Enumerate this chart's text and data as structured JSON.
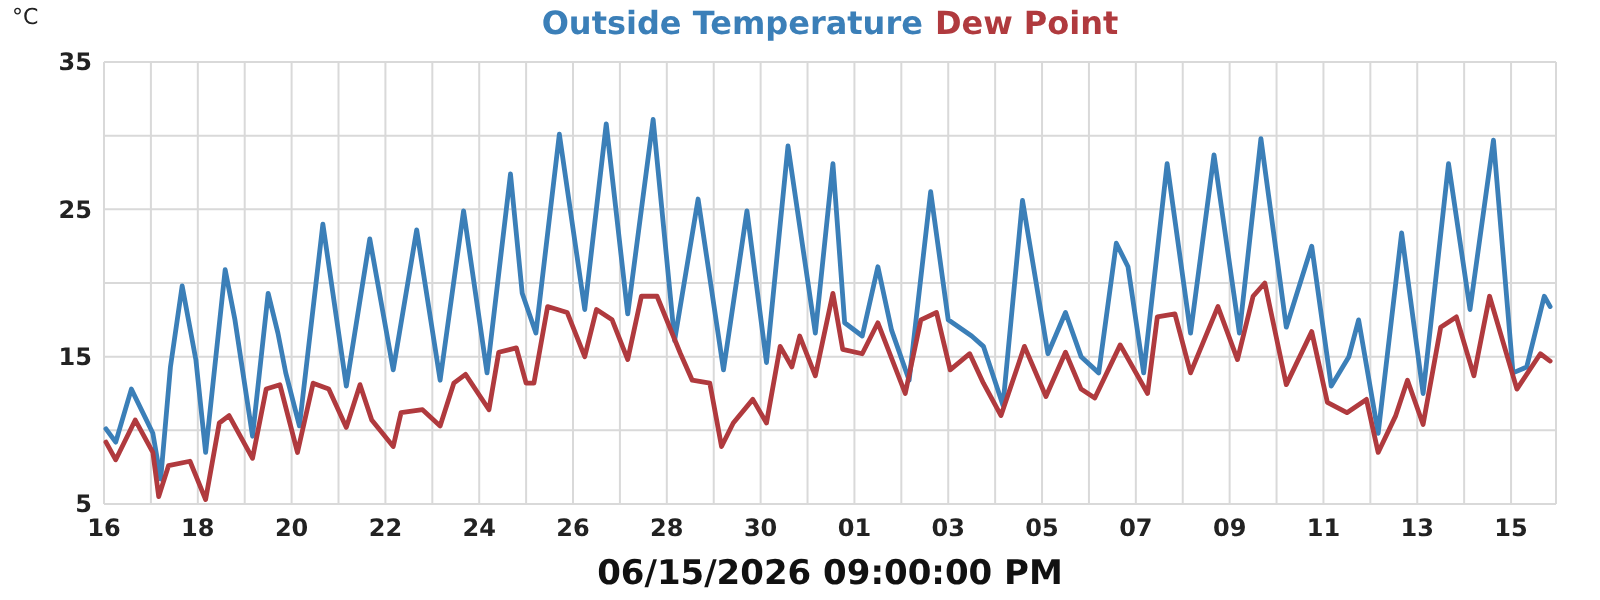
{
  "chart_data": {
    "type": "line",
    "ylabel": "°C",
    "xlabel": "06/15/2026 09:00:00 PM",
    "legend": "top",
    "grid": true,
    "line_style": "solid",
    "marker": "none",
    "xlim": [
      "2026-05-16T00:00",
      "2026-06-15T23:00"
    ],
    "xticks": [
      {
        "value": "2026-05-16",
        "label": "16"
      },
      {
        "value": "2026-05-17",
        "label": null
      },
      {
        "value": "2026-05-18",
        "label": "18"
      },
      {
        "value": "2026-05-19",
        "label": null
      },
      {
        "value": "2026-05-20",
        "label": "20"
      },
      {
        "value": "2026-05-21",
        "label": null
      },
      {
        "value": "2026-05-22",
        "label": "22"
      },
      {
        "value": "2026-05-23",
        "label": null
      },
      {
        "value": "2026-05-24",
        "label": "24"
      },
      {
        "value": "2026-05-25",
        "label": null
      },
      {
        "value": "2026-05-26",
        "label": "26"
      },
      {
        "value": "2026-05-27",
        "label": null
      },
      {
        "value": "2026-05-28",
        "label": "28"
      },
      {
        "value": "2026-05-29",
        "label": null
      },
      {
        "value": "2026-05-30",
        "label": "30"
      },
      {
        "value": "2026-05-31",
        "label": null
      },
      {
        "value": "2026-06-01",
        "label": "01"
      },
      {
        "value": "2026-06-02",
        "label": null
      },
      {
        "value": "2026-06-03",
        "label": "03"
      },
      {
        "value": "2026-06-04",
        "label": null
      },
      {
        "value": "2026-06-05",
        "label": "05"
      },
      {
        "value": "2026-06-06",
        "label": null
      },
      {
        "value": "2026-06-07",
        "label": "07"
      },
      {
        "value": "2026-06-08",
        "label": null
      },
      {
        "value": "2026-06-09",
        "label": "09"
      },
      {
        "value": "2026-06-10",
        "label": null
      },
      {
        "value": "2026-06-11",
        "label": "11"
      },
      {
        "value": "2026-06-12",
        "label": null
      },
      {
        "value": "2026-06-13",
        "label": "13"
      },
      {
        "value": "2026-06-14",
        "label": null
      },
      {
        "value": "2026-06-15",
        "label": "15"
      }
    ],
    "ylim": [
      5,
      35
    ],
    "yticks": [
      5,
      {
        "value": 10,
        "label": null
      },
      15,
      {
        "value": 20,
        "label": null
      },
      25,
      {
        "value": 30,
        "label": null
      },
      35
    ],
    "series": [
      {
        "name": "Outside Temperature",
        "color": "#3b7fb8",
        "x": [
          "2026-05-16T01:00",
          "2026-05-16T06:00",
          "2026-05-16T14:00",
          "2026-05-17T01:00",
          "2026-05-17T05:00",
          "2026-05-17T10:00",
          "2026-05-17T16:00",
          "2026-05-17T23:00",
          "2026-05-18T04:00",
          "2026-05-18T14:00",
          "2026-05-18T19:00",
          "2026-05-19T04:00",
          "2026-05-19T12:00",
          "2026-05-19T17:00",
          "2026-05-19T21:00",
          "2026-05-20T04:00",
          "2026-05-20T16:00",
          "2026-05-21T04:00",
          "2026-05-21T16:00",
          "2026-05-22T04:00",
          "2026-05-22T16:00",
          "2026-05-23T04:00",
          "2026-05-23T16:00",
          "2026-05-24T04:00",
          "2026-05-24T16:00",
          "2026-05-24T22:00",
          "2026-05-25T05:00",
          "2026-05-25T17:00",
          "2026-05-26T06:00",
          "2026-05-26T17:00",
          "2026-05-27T04:00",
          "2026-05-27T17:00",
          "2026-05-28T04:00",
          "2026-05-28T16:00",
          "2026-05-29T05:00",
          "2026-05-29T17:00",
          "2026-05-30T03:00",
          "2026-05-30T14:00",
          "2026-05-31T04:00",
          "2026-05-31T13:00",
          "2026-05-31T19:00",
          "2026-06-01T04:00",
          "2026-06-01T12:00",
          "2026-06-01T19:00",
          "2026-06-02T04:00",
          "2026-06-02T15:00",
          "2026-06-03T00:00",
          "2026-06-03T12:00",
          "2026-06-03T18:00",
          "2026-06-04T04:00",
          "2026-06-04T14:00",
          "2026-06-05T03:00",
          "2026-06-05T12:00",
          "2026-06-05T20:00",
          "2026-06-06T05:00",
          "2026-06-06T14:00",
          "2026-06-06T20:00",
          "2026-06-07T04:00",
          "2026-06-07T16:00",
          "2026-06-08T04:00",
          "2026-06-08T16:00",
          "2026-06-09T05:00",
          "2026-06-09T16:00",
          "2026-06-10T05:00",
          "2026-06-10T18:00",
          "2026-06-11T04:00",
          "2026-06-11T13:00",
          "2026-06-11T18:00",
          "2026-06-12T04:00",
          "2026-06-12T16:00",
          "2026-06-13T03:00",
          "2026-06-13T16:00",
          "2026-06-14T03:00",
          "2026-06-14T15:00",
          "2026-06-15T01:00",
          "2026-06-15T08:00",
          "2026-06-15T17:00",
          "2026-06-15T20:00"
        ],
        "values": [
          10.1,
          9.2,
          12.8,
          9.8,
          6.7,
          14.3,
          19.8,
          14.8,
          8.5,
          20.9,
          17.5,
          9.6,
          19.3,
          16.6,
          13.9,
          10.3,
          24.0,
          13.0,
          23.0,
          14.1,
          23.6,
          13.4,
          24.9,
          13.9,
          27.4,
          19.3,
          16.6,
          30.1,
          18.2,
          30.8,
          17.9,
          31.1,
          16.1,
          25.7,
          14.1,
          24.9,
          14.6,
          29.3,
          16.6,
          28.1,
          17.3,
          16.4,
          21.1,
          16.8,
          13.4,
          26.2,
          17.5,
          16.4,
          15.7,
          11.7,
          25.6,
          15.2,
          18.0,
          15.0,
          13.9,
          22.7,
          21.1,
          13.9,
          28.1,
          16.6,
          28.7,
          16.6,
          29.8,
          17.0,
          22.5,
          13.0,
          15.0,
          17.5,
          9.8,
          23.4,
          12.5,
          28.1,
          18.2,
          29.7,
          13.9,
          14.3,
          19.1,
          18.4
        ]
      },
      {
        "name": "Dew Point",
        "color": "#b03a3e",
        "x": [
          "2026-05-16T01:00",
          "2026-05-16T06:00",
          "2026-05-16T16:00",
          "2026-05-17T01:00",
          "2026-05-17T04:00",
          "2026-05-17T09:00",
          "2026-05-17T20:00",
          "2026-05-18T04:00",
          "2026-05-18T11:00",
          "2026-05-18T16:00",
          "2026-05-19T04:00",
          "2026-05-19T11:00",
          "2026-05-19T18:00",
          "2026-05-20T03:00",
          "2026-05-20T11:00",
          "2026-05-20T19:00",
          "2026-05-21T04:00",
          "2026-05-21T11:00",
          "2026-05-21T17:00",
          "2026-05-22T04:00",
          "2026-05-22T08:00",
          "2026-05-22T19:00",
          "2026-05-23T04:00",
          "2026-05-23T11:00",
          "2026-05-23T17:00",
          "2026-05-24T05:00",
          "2026-05-24T10:00",
          "2026-05-24T19:00",
          "2026-05-25T00:00",
          "2026-05-25T04:00",
          "2026-05-25T11:00",
          "2026-05-25T21:00",
          "2026-05-26T06:00",
          "2026-05-26T12:00",
          "2026-05-26T20:00",
          "2026-05-27T04:00",
          "2026-05-27T11:00",
          "2026-05-27T19:00",
          "2026-05-28T07:00",
          "2026-05-28T13:00",
          "2026-05-28T22:00",
          "2026-05-29T04:00",
          "2026-05-29T10:00",
          "2026-05-29T20:00",
          "2026-05-30T03:00",
          "2026-05-30T10:00",
          "2026-05-30T16:00",
          "2026-05-30T20:00",
          "2026-05-31T04:00",
          "2026-05-31T13:00",
          "2026-05-31T18:00",
          "2026-06-01T04:00",
          "2026-06-01T12:00",
          "2026-06-02T02:00",
          "2026-06-02T10:00",
          "2026-06-02T18:00",
          "2026-06-03T01:00",
          "2026-06-03T11:00",
          "2026-06-03T18:00",
          "2026-06-04T03:00",
          "2026-06-04T15:00",
          "2026-06-05T02:00",
          "2026-06-05T12:00",
          "2026-06-05T20:00",
          "2026-06-06T03:00",
          "2026-06-06T16:00",
          "2026-06-07T06:00",
          "2026-06-07T11:00",
          "2026-06-07T20:00",
          "2026-06-08T04:00",
          "2026-06-08T18:00",
          "2026-06-09T04:00",
          "2026-06-09T12:00",
          "2026-06-09T18:00",
          "2026-06-10T05:00",
          "2026-06-10T18:00",
          "2026-06-11T02:00",
          "2026-06-11T12:00",
          "2026-06-11T22:00",
          "2026-06-12T04:00",
          "2026-06-12T13:00",
          "2026-06-12T19:00",
          "2026-06-13T03:00",
          "2026-06-13T12:00",
          "2026-06-13T20:00",
          "2026-06-14T05:00",
          "2026-06-14T13:00",
          "2026-06-15T03:00",
          "2026-06-15T15:00",
          "2026-06-15T20:00"
        ],
        "values": [
          9.2,
          8.0,
          10.7,
          8.5,
          5.5,
          7.6,
          7.9,
          5.3,
          10.5,
          11.0,
          8.1,
          12.8,
          13.1,
          8.5,
          13.2,
          12.8,
          10.2,
          13.1,
          10.7,
          8.9,
          11.2,
          11.4,
          10.3,
          13.2,
          13.8,
          11.4,
          15.3,
          15.6,
          13.2,
          13.2,
          18.4,
          18.0,
          15.0,
          18.2,
          17.5,
          14.8,
          19.1,
          19.1,
          15.2,
          13.4,
          13.2,
          8.9,
          10.5,
          12.1,
          10.5,
          15.7,
          14.3,
          16.4,
          13.7,
          19.3,
          15.5,
          15.2,
          17.3,
          12.5,
          17.5,
          18.0,
          14.1,
          15.2,
          13.2,
          11.0,
          15.7,
          12.3,
          15.3,
          12.8,
          12.2,
          15.8,
          12.5,
          17.7,
          17.9,
          13.9,
          18.4,
          14.8,
          19.1,
          20.0,
          13.1,
          16.7,
          11.9,
          11.2,
          12.1,
          8.5,
          11.0,
          13.4,
          10.4,
          17.0,
          17.7,
          13.7,
          19.1,
          12.8,
          15.2,
          14.7
        ]
      }
    ]
  }
}
